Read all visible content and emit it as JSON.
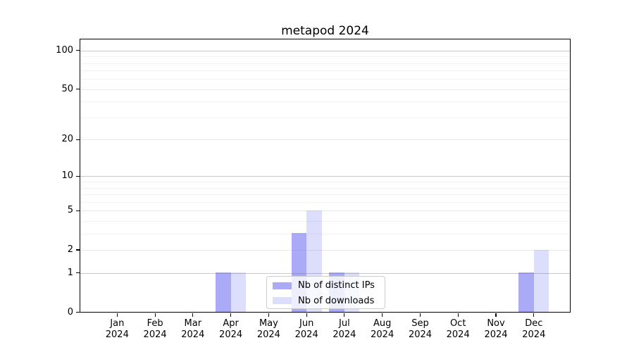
{
  "chart_data": {
    "type": "bar",
    "title": "metapod 2024",
    "categories": [
      "Jan",
      "Feb",
      "Mar",
      "Apr",
      "May",
      "Jun",
      "Jul",
      "Aug",
      "Sep",
      "Oct",
      "Nov",
      "Dec"
    ],
    "x_sub_label": "2024",
    "series": [
      {
        "name": "Nb of distinct IPs",
        "color": "rgba(85,85,238,0.5)",
        "values": [
          0,
          0,
          0,
          1,
          0,
          3,
          1,
          0,
          0,
          0,
          0,
          1
        ]
      },
      {
        "name": "Nb of downloads",
        "color": "rgba(85,85,238,0.2)",
        "values": [
          0,
          0,
          0,
          1,
          0,
          5,
          1,
          0,
          0,
          0,
          0,
          2
        ]
      }
    ],
    "y_axis": {
      "scale": "log10(1+v)",
      "major_ticks": [
        0,
        1,
        2,
        5,
        10,
        20,
        50,
        100
      ],
      "emphasized_gridlines": [
        1,
        10,
        100
      ],
      "secondary_gridlines": [
        2,
        5,
        20,
        50
      ],
      "minor_gridlines": [
        3,
        4,
        6,
        7,
        8,
        9,
        30,
        40,
        60,
        70,
        80,
        90
      ],
      "max_value": 123
    },
    "legend": {
      "position": "lower center",
      "entries": [
        "Nb of distinct IPs",
        "Nb of downloads"
      ]
    },
    "grid": true
  },
  "colors": {
    "series_base": "#5555ee",
    "bar_distinct_ips": "rgba(85,85,238,0.5)",
    "bar_downloads": "rgba(85,85,238,0.2)",
    "gridline_decade": "#c9c9c9",
    "gridline_secondary": "#e9e9e9",
    "gridline_minor": "#f3f3f3",
    "spine": "#000000",
    "text": "#000000",
    "legend_border": "#cccccc",
    "background": "#ffffff"
  }
}
